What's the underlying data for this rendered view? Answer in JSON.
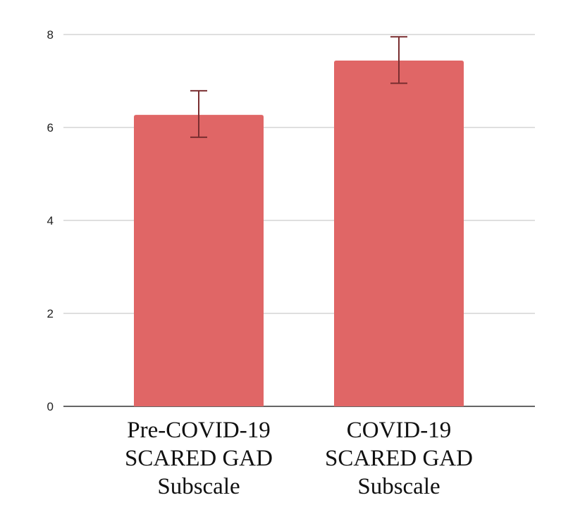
{
  "chart_data": {
    "type": "bar",
    "title": "",
    "xlabel": "",
    "ylabel": "",
    "categories": [
      [
        "Pre-COVID-19",
        "SCARED GAD",
        "Subscale"
      ],
      [
        "COVID-19",
        "SCARED GAD",
        "Subscale"
      ]
    ],
    "values": [
      6.27,
      7.44
    ],
    "error_bars": [
      {
        "low": 5.79,
        "high": 6.79
      },
      {
        "low": 6.95,
        "high": 7.95
      }
    ],
    "ylim": [
      0,
      8
    ],
    "yticks": [
      "0",
      "2",
      "4",
      "6",
      "8"
    ],
    "grid": true,
    "legend": "none",
    "colors": {
      "bar": "#e06666",
      "error": "#7a2e30",
      "grid": "#cccccc",
      "axis": "#333333"
    }
  }
}
